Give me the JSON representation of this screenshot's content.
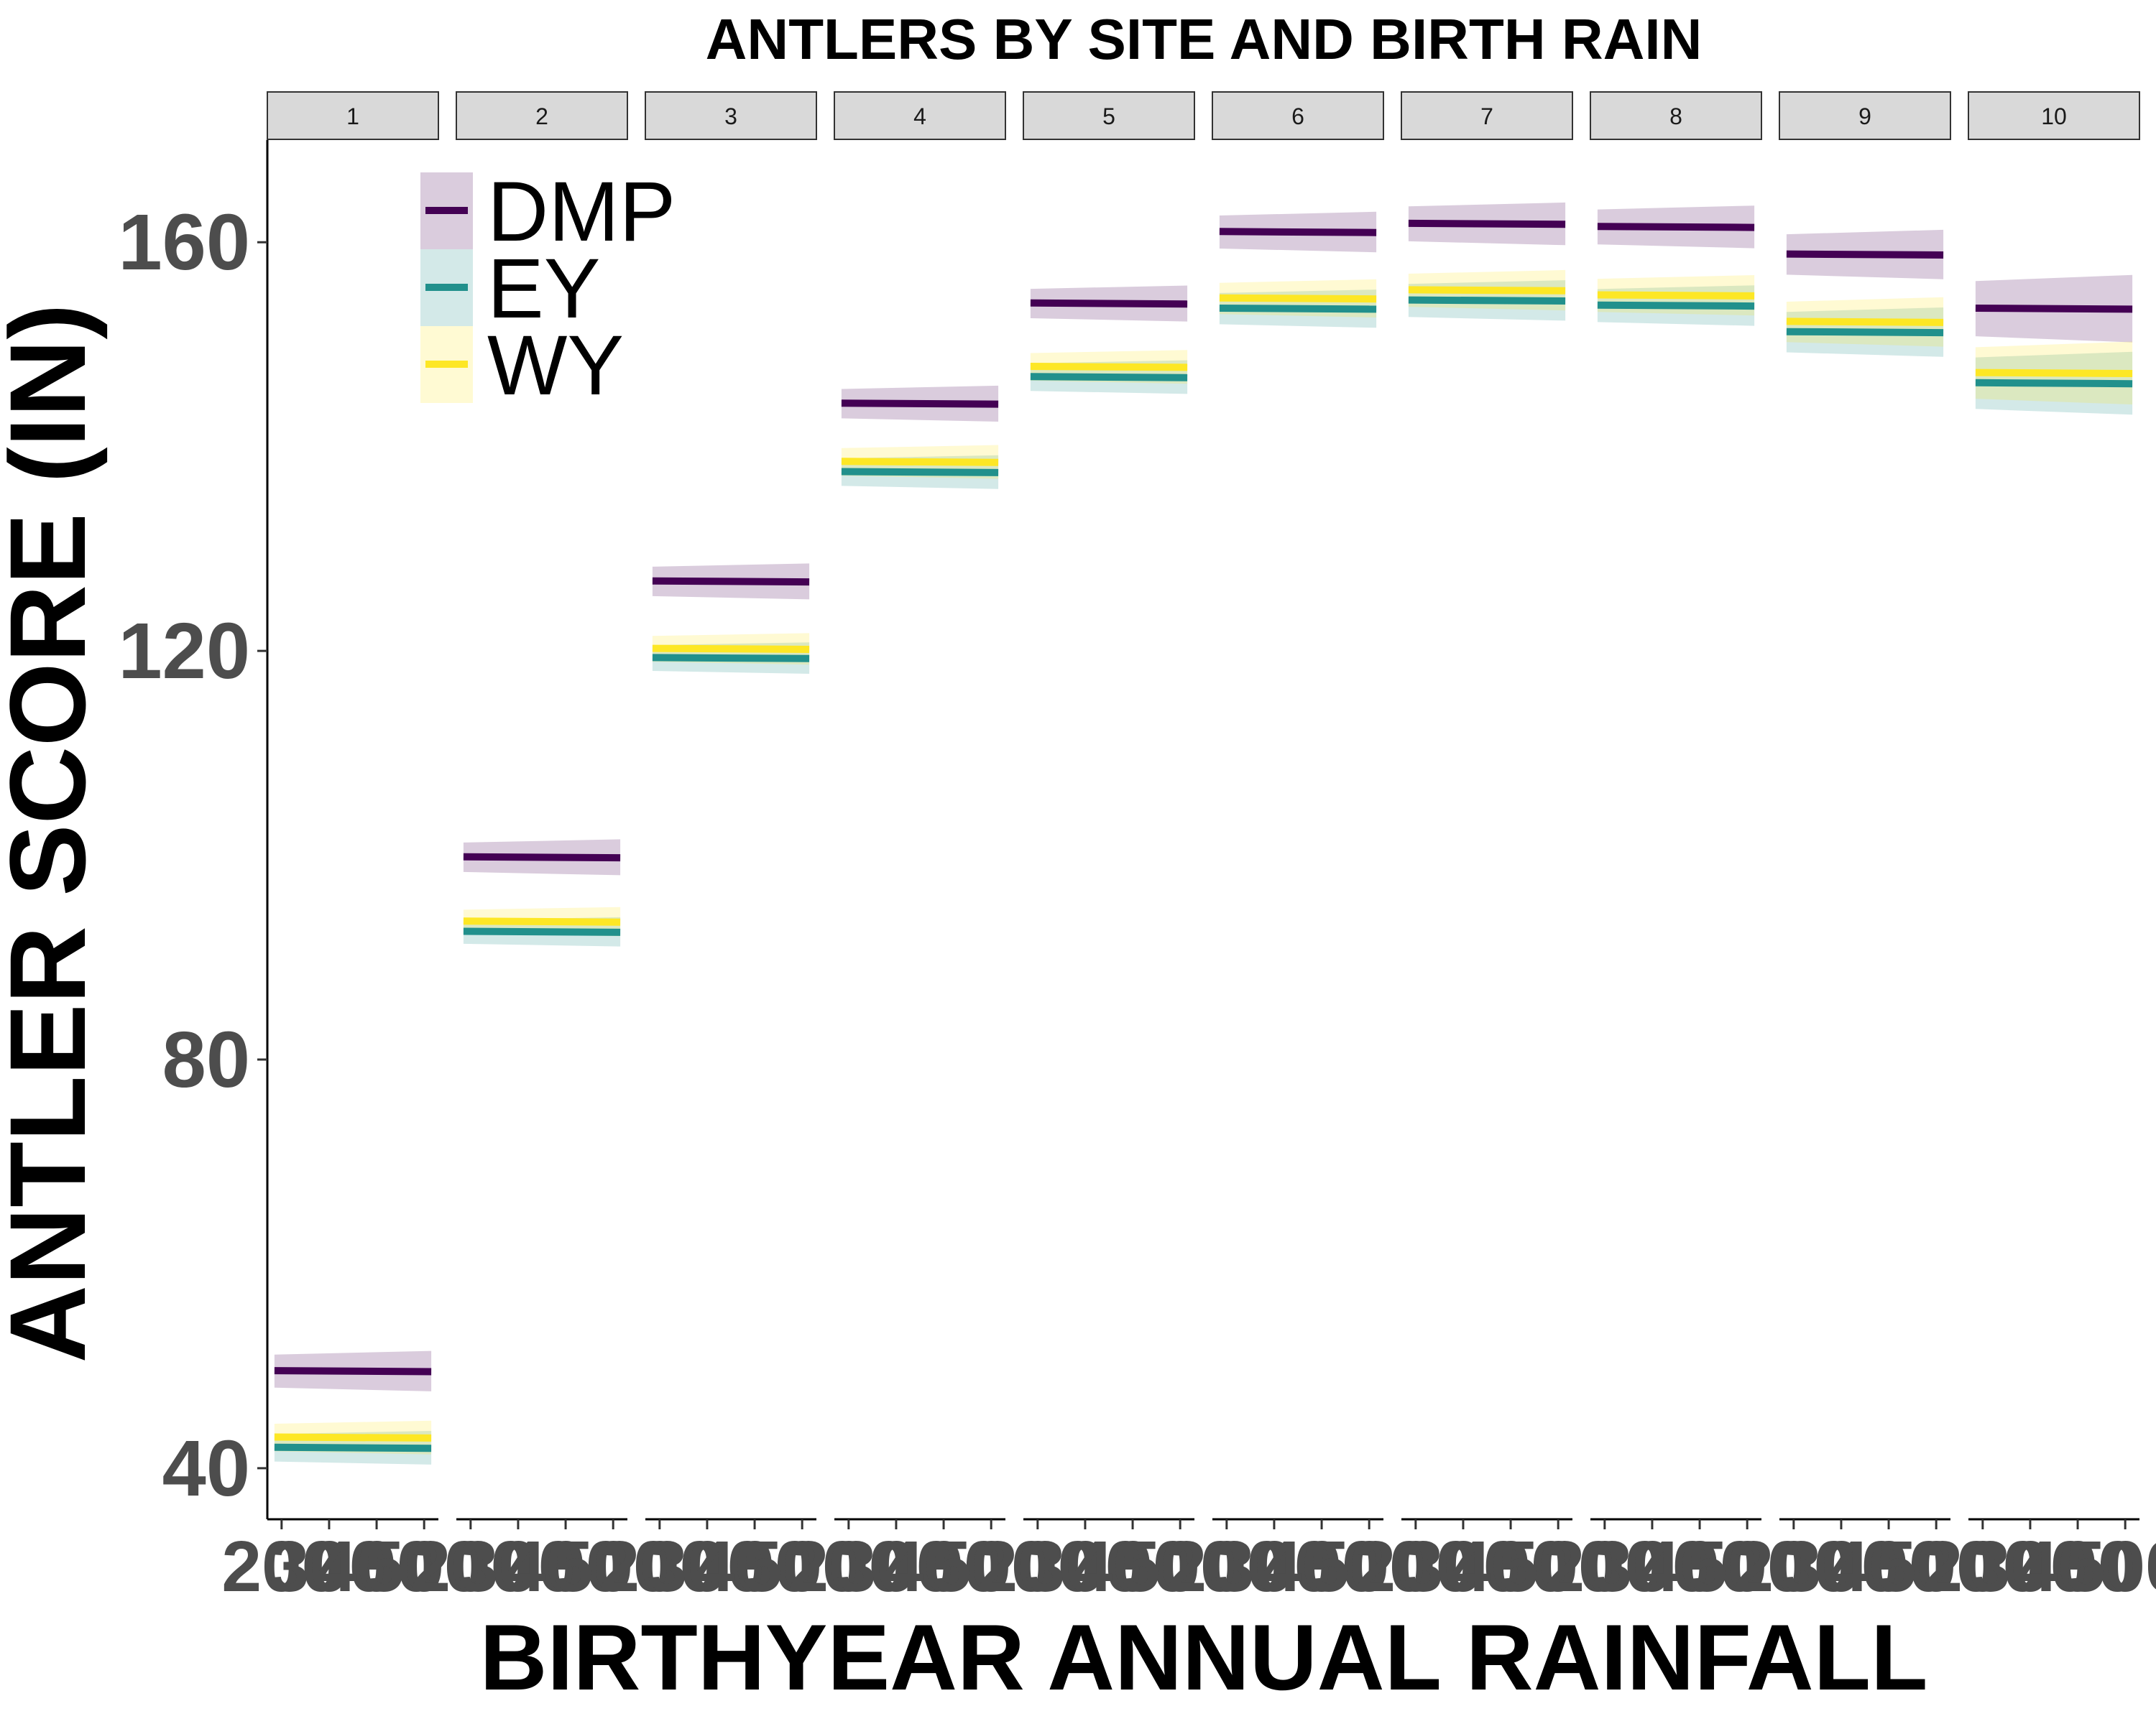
{
  "chart_data": {
    "type": "line",
    "title": "ANTLERS BY SITE AND BIRTH RAIN",
    "xlabel": "BIRTHYEAR ANNUAL RAINFALL",
    "ylabel": "ANTLER SCORE (IN)",
    "ylim": [
      35,
      170
    ],
    "yticks": [
      40,
      80,
      120,
      160
    ],
    "x_range": [
      170,
      530
    ],
    "xticks": [
      200,
      300,
      400,
      500
    ],
    "xtick_labels": [
      "200",
      "300",
      "400",
      "500"
    ],
    "grid": false,
    "legend_position": "top-left",
    "panels": [
      "1",
      "2",
      "3",
      "4",
      "5",
      "6",
      "7",
      "8",
      "9",
      "10"
    ],
    "series": [
      {
        "name": "DMP",
        "color": "#440154",
        "band_color": "#440154",
        "values": [
          49.5,
          99.8,
          126.8,
          144.2,
          154.0,
          161.0,
          161.8,
          161.5,
          158.8,
          153.5
        ],
        "band_halfwidth": [
          1.8,
          1.6,
          1.6,
          1.6,
          1.6,
          1.8,
          1.9,
          1.9,
          2.2,
          3.0
        ]
      },
      {
        "name": "EY",
        "color": "#21908C",
        "band_color": "#21908C",
        "values": [
          42.0,
          92.5,
          119.3,
          137.5,
          146.8,
          153.5,
          154.3,
          153.8,
          151.2,
          146.2
        ],
        "band_halfwidth": [
          1.5,
          1.3,
          1.4,
          1.5,
          1.5,
          1.7,
          1.8,
          1.8,
          2.2,
          2.8
        ]
      },
      {
        "name": "WY",
        "color": "#FDE725",
        "band_color": "#FDE725",
        "values": [
          43.0,
          93.5,
          120.2,
          138.5,
          147.8,
          154.5,
          155.3,
          154.8,
          152.2,
          147.2
        ],
        "band_halfwidth": [
          1.5,
          1.3,
          1.4,
          1.5,
          1.5,
          1.7,
          1.8,
          1.8,
          2.2,
          2.8
        ]
      }
    ]
  }
}
